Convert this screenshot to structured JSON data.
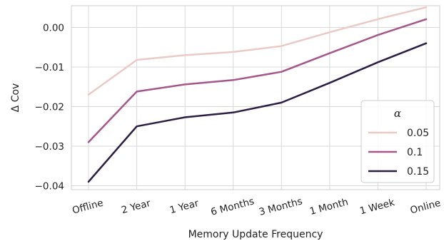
{
  "chart_data": {
    "type": "line",
    "xlabel": "Memory Update Frequency",
    "ylabel": "Δ Cov",
    "categories": [
      "Offline",
      "2 Year",
      "1 Year",
      "6 Months",
      "3 Months",
      "1 Month",
      "1 Week",
      "Online"
    ],
    "ylim": [
      -0.041,
      0.0055
    ],
    "yticks": [
      0.0,
      -0.01,
      -0.02,
      -0.03,
      -0.04
    ],
    "ytick_labels": [
      "0.00",
      "−0.01",
      "−0.02",
      "−0.03",
      "−0.04"
    ],
    "grid": true,
    "legend": {
      "title": "α",
      "placement": "lower-right"
    },
    "series": [
      {
        "name": "0.05",
        "color": "#ebcac6",
        "values": [
          -0.017,
          -0.0082,
          -0.007,
          -0.0062,
          -0.0047,
          -0.0012,
          0.0021,
          0.0051
        ]
      },
      {
        "name": "0.1",
        "color": "#a4578b",
        "values": [
          -0.029,
          -0.0162,
          -0.0144,
          -0.0133,
          -0.0112,
          -0.0065,
          -0.0019,
          0.0021
        ]
      },
      {
        "name": "0.15",
        "color": "#2b1d44",
        "values": [
          -0.039,
          -0.025,
          -0.0227,
          -0.0215,
          -0.019,
          -0.014,
          -0.0088,
          -0.004
        ]
      }
    ]
  }
}
